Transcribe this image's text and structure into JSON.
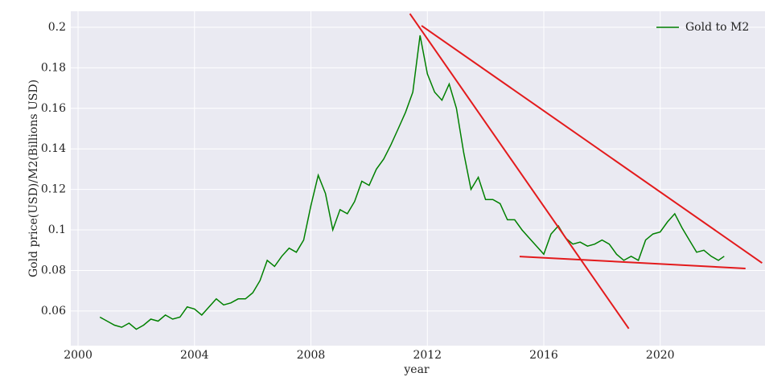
{
  "chart_data": {
    "type": "line",
    "x_label": "year",
    "y_label": "Gold price(USD)/M2(Billions USD)",
    "x": [
      2000.75,
      2001.0,
      2001.25,
      2001.5,
      2001.75,
      2002.0,
      2002.25,
      2002.5,
      2002.75,
      2003.0,
      2003.25,
      2003.5,
      2003.75,
      2004.0,
      2004.25,
      2004.5,
      2004.75,
      2005.0,
      2005.25,
      2005.5,
      2005.75,
      2006.0,
      2006.25,
      2006.5,
      2006.75,
      2007.0,
      2007.25,
      2007.5,
      2007.75,
      2008.0,
      2008.25,
      2008.5,
      2008.75,
      2009.0,
      2009.25,
      2009.5,
      2009.75,
      2010.0,
      2010.25,
      2010.5,
      2010.75,
      2011.0,
      2011.25,
      2011.5,
      2011.75,
      2012.0,
      2012.25,
      2012.5,
      2012.75,
      2013.0,
      2013.25,
      2013.5,
      2013.75,
      2014.0,
      2014.25,
      2014.5,
      2014.75,
      2015.0,
      2015.25,
      2015.5,
      2015.75,
      2016.0,
      2016.25,
      2016.5,
      2016.75,
      2017.0,
      2017.25,
      2017.5,
      2017.75,
      2018.0,
      2018.25,
      2018.5,
      2018.75,
      2019.0,
      2019.25,
      2019.5,
      2019.75,
      2020.0,
      2020.25,
      2020.5,
      2020.75,
      2021.0,
      2021.25,
      2021.5,
      2021.75,
      2022.0,
      2022.2
    ],
    "series": [
      {
        "name": "Gold to M2",
        "color": "#008000",
        "values": [
          0.057,
          0.055,
          0.053,
          0.052,
          0.054,
          0.051,
          0.053,
          0.056,
          0.055,
          0.058,
          0.056,
          0.057,
          0.062,
          0.061,
          0.058,
          0.062,
          0.066,
          0.063,
          0.064,
          0.066,
          0.066,
          0.069,
          0.075,
          0.085,
          0.082,
          0.087,
          0.091,
          0.089,
          0.095,
          0.112,
          0.127,
          0.118,
          0.1,
          0.11,
          0.108,
          0.114,
          0.124,
          0.122,
          0.13,
          0.135,
          0.142,
          0.15,
          0.158,
          0.168,
          0.196,
          0.177,
          0.168,
          0.164,
          0.172,
          0.16,
          0.138,
          0.12,
          0.126,
          0.115,
          0.115,
          0.113,
          0.105,
          0.105,
          0.1,
          0.096,
          0.092,
          0.088,
          0.098,
          0.102,
          0.096,
          0.093,
          0.094,
          0.092,
          0.093,
          0.095,
          0.093,
          0.088,
          0.085,
          0.087,
          0.085,
          0.095,
          0.098,
          0.099,
          0.104,
          0.108,
          0.101,
          0.095,
          0.089,
          0.09,
          0.087,
          0.085,
          0.087
        ]
      }
    ],
    "trend_lines": [
      {
        "color": "#e31a1c",
        "x": [
          2011.4,
          2018.92
        ],
        "y": [
          0.2067,
          0.0513
        ]
      },
      {
        "color": "#e31a1c",
        "x": [
          2011.8,
          2023.5
        ],
        "y": [
          0.2008,
          0.0837
        ]
      },
      {
        "color": "#e31a1c",
        "x": [
          2015.17,
          2022.93
        ],
        "y": [
          0.0869,
          0.081
        ]
      }
    ],
    "xlim": [
      1999.75,
      2023.6
    ],
    "xticks": [
      2000,
      2004,
      2008,
      2012,
      2016,
      2020
    ],
    "ylim": [
      0.0429,
      0.2079
    ],
    "yticks": [
      0.06,
      0.08,
      0.1,
      0.12,
      0.14,
      0.16,
      0.18,
      0.2
    ],
    "grid": true,
    "legend": "upper right"
  }
}
